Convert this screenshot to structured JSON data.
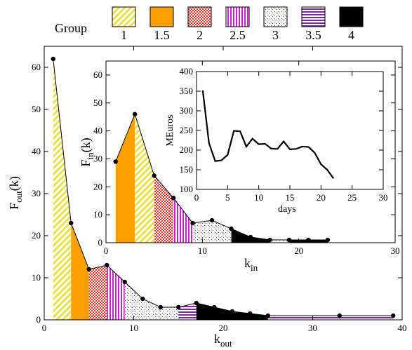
{
  "legend": {
    "title": "Group",
    "groups": [
      {
        "label": "1",
        "pattern": "diag"
      },
      {
        "label": "1.5",
        "pattern": "solid-orange"
      },
      {
        "label": "2",
        "pattern": "dots-red"
      },
      {
        "label": "2.5",
        "pattern": "vlines-magenta"
      },
      {
        "label": "3",
        "pattern": "dots-blue"
      },
      {
        "label": "3.5",
        "pattern": "hlines-purple"
      },
      {
        "label": "4",
        "pattern": "solid-black"
      }
    ]
  },
  "colors": {
    "yellow": "#e9e24b",
    "orange": "#ff9f00",
    "red": "#e53030",
    "magenta": "#cc20cc",
    "blue": "#4a4ac8",
    "purple": "#7a2a9a",
    "black": "#000000"
  },
  "chart_data": [
    {
      "id": "main",
      "type": "area",
      "xlabel": "k",
      "xlabel_sub": "out",
      "ylabel": "F",
      "ylabel_sub": "out",
      "ylabel_suffix": "(k)",
      "xlim": [
        0,
        40
      ],
      "ylim": [
        0,
        65
      ],
      "xticks": [
        0,
        10,
        20,
        30,
        40
      ],
      "yticks": [
        0,
        10,
        20,
        30,
        40,
        50,
        60
      ],
      "x": [
        1,
        3,
        5,
        7,
        9,
        11,
        13,
        15,
        17,
        19,
        21,
        23,
        25,
        33,
        39
      ],
      "y": [
        62,
        23,
        12,
        13,
        9,
        5,
        3,
        3,
        4,
        3,
        2,
        1.5,
        1,
        1,
        1
      ],
      "group_bands": [
        {
          "group": "1",
          "x0": 1,
          "x1": 3
        },
        {
          "group": "1.5",
          "x0": 3,
          "x1": 5
        },
        {
          "group": "2",
          "x0": 5,
          "x1": 7
        },
        {
          "group": "2.5",
          "x0": 7,
          "x1": 9
        },
        {
          "group": "3",
          "x0": 9,
          "x1": 15
        },
        {
          "group": "3.5",
          "x0": 15,
          "x1": 17
        },
        {
          "group": "4",
          "x0": 17,
          "x1": 25
        },
        {
          "group": "3.5",
          "x0": 25,
          "x1": 39
        }
      ]
    },
    {
      "id": "inset-in",
      "type": "area",
      "xlabel": "k",
      "xlabel_sub": "in",
      "ylabel": "F",
      "ylabel_sub": "in",
      "ylabel_suffix": "(k)",
      "xlim": [
        0,
        30
      ],
      "ylim": [
        0,
        65
      ],
      "xticks": [
        0,
        10,
        20,
        30
      ],
      "yticks": [
        0,
        10,
        20,
        30,
        40,
        50,
        60
      ],
      "x": [
        1,
        3,
        5,
        7,
        9,
        11,
        13,
        15,
        17,
        19,
        21,
        23
      ],
      "y": [
        29,
        46,
        24,
        16,
        7,
        8,
        5,
        2,
        1,
        1,
        1,
        1
      ],
      "group_bands": [
        {
          "group": "1.5",
          "x0": 1,
          "x1": 3
        },
        {
          "group": "1",
          "x0": 3,
          "x1": 5
        },
        {
          "group": "2",
          "x0": 5,
          "x1": 7
        },
        {
          "group": "2.5",
          "x0": 7,
          "x1": 9
        },
        {
          "group": "3",
          "x0": 9,
          "x1": 13
        },
        {
          "group": "4",
          "x0": 13,
          "x1": 17
        },
        {
          "group": "3",
          "x0": 17,
          "x1": 19
        },
        {
          "group": "4",
          "x0": 19,
          "x1": 23
        }
      ]
    },
    {
      "id": "inset-days",
      "type": "line",
      "xlabel": "days",
      "ylabel": "MEuros",
      "xlim": [
        0,
        30
      ],
      "ylim": [
        100,
        400
      ],
      "xticks": [
        0,
        5,
        10,
        15,
        20,
        25,
        30
      ],
      "yticks": [
        100,
        150,
        200,
        250,
        300,
        350,
        400
      ],
      "x": [
        1,
        2,
        3,
        4,
        5,
        6,
        7,
        8,
        9,
        10,
        11,
        12,
        13,
        14,
        15,
        16,
        17,
        18,
        19,
        20,
        21,
        22
      ],
      "y": [
        352,
        218,
        172,
        174,
        188,
        249,
        248,
        209,
        229,
        215,
        216,
        204,
        203,
        222,
        202,
        203,
        209,
        208,
        193,
        164,
        150,
        128
      ]
    }
  ]
}
